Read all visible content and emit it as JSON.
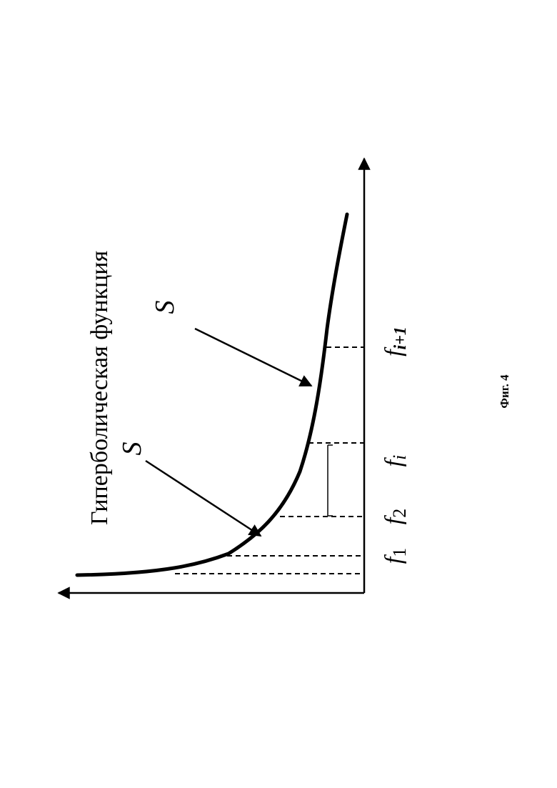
{
  "title": "Гиперболическая функция",
  "arrow_labels": [
    "S",
    "S"
  ],
  "tick_labels": {
    "f1": {
      "base": "f",
      "sub": "1"
    },
    "f2": {
      "base": "f",
      "sub": "2"
    },
    "fi": {
      "base": "f",
      "sub": "i"
    },
    "fi1": {
      "base": "f",
      "sub": "i+1"
    }
  },
  "caption": "Фиг. 4",
  "colors": {
    "ink": "#000000",
    "paper": "#ffffff"
  }
}
